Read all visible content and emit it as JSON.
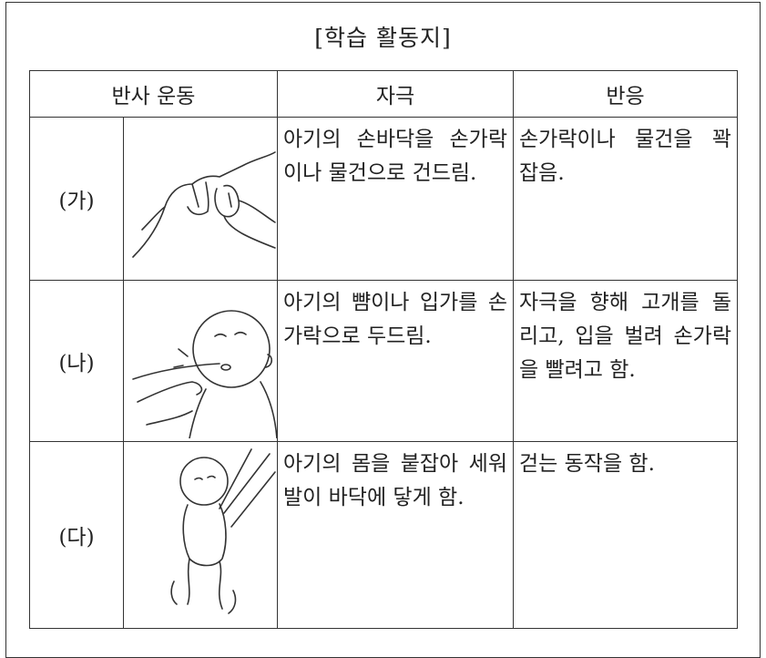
{
  "title": "[학습 활동지]",
  "table": {
    "header": [
      "반사 운동",
      "자극",
      "반응"
    ],
    "rows": [
      [
        "(가)",
        "아기의 손바닥을 손가락이나 물건으로 건드림.",
        "손가락이나 물건을 꽉 잡음."
      ],
      [
        "(나)",
        "아기의 뺨이나 입가를 손가락으로 두드림.",
        "자극을 향해 고개를 돌리고, 입을 벌려 손가락을 빨려고 함."
      ],
      [
        "(다)",
        "아기의 몸을 붙잡아 세워 발이 바닥에 닿게 함.",
        "걷는 동작을 함."
      ]
    ]
  }
}
